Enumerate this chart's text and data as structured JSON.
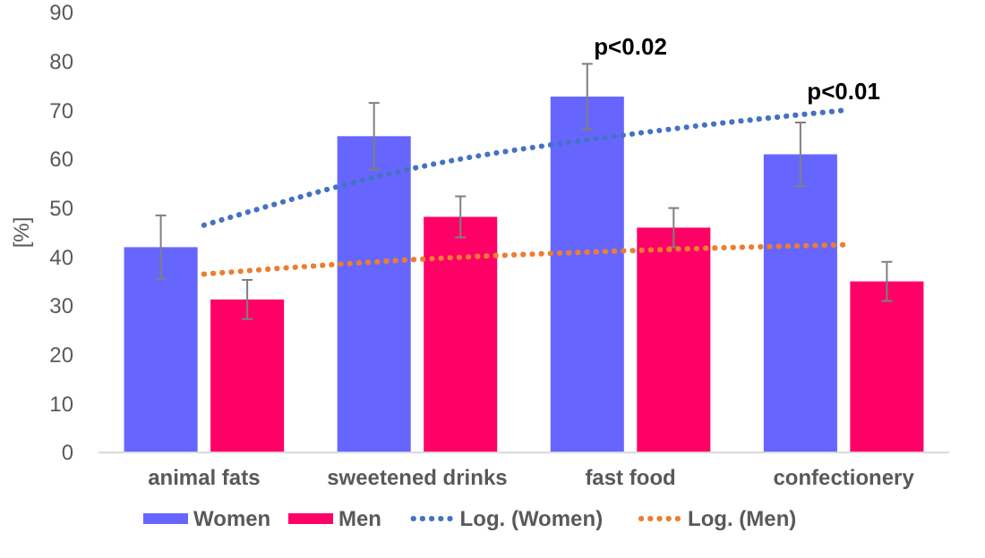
{
  "chart_data": {
    "type": "bar",
    "ylabel": "[%]",
    "categories": [
      "animal fats",
      "sweetened drinks",
      "fast food",
      "confectionery"
    ],
    "series": [
      {
        "name": "Women",
        "color": "#6666ff",
        "values": [
          42,
          64.7,
          72.8,
          61
        ],
        "errors": [
          6.5,
          6.8,
          6.7,
          6.5
        ]
      },
      {
        "name": "Men",
        "color": "#ff0066",
        "values": [
          31.3,
          48.2,
          46,
          35
        ],
        "errors": [
          4,
          4.2,
          4,
          4
        ]
      },
      {
        "name": "Log. (Women)",
        "type": "line",
        "color": "#4472c4",
        "line_style": "dotted",
        "values": [
          46.5,
          58.3,
          65.1,
          70
        ]
      },
      {
        "name": "Log. (Men)",
        "type": "line",
        "color": "#ed7d31",
        "line_style": "dotted",
        "values": [
          36.5,
          39.5,
          41.3,
          42.5
        ]
      }
    ],
    "ylim": [
      0,
      90
    ],
    "yticks": [
      0,
      10,
      20,
      30,
      40,
      50,
      60,
      70,
      80,
      90
    ],
    "grid": false,
    "legend": "bottom",
    "annotations": [
      "p<0.02",
      "p<0.01"
    ]
  }
}
